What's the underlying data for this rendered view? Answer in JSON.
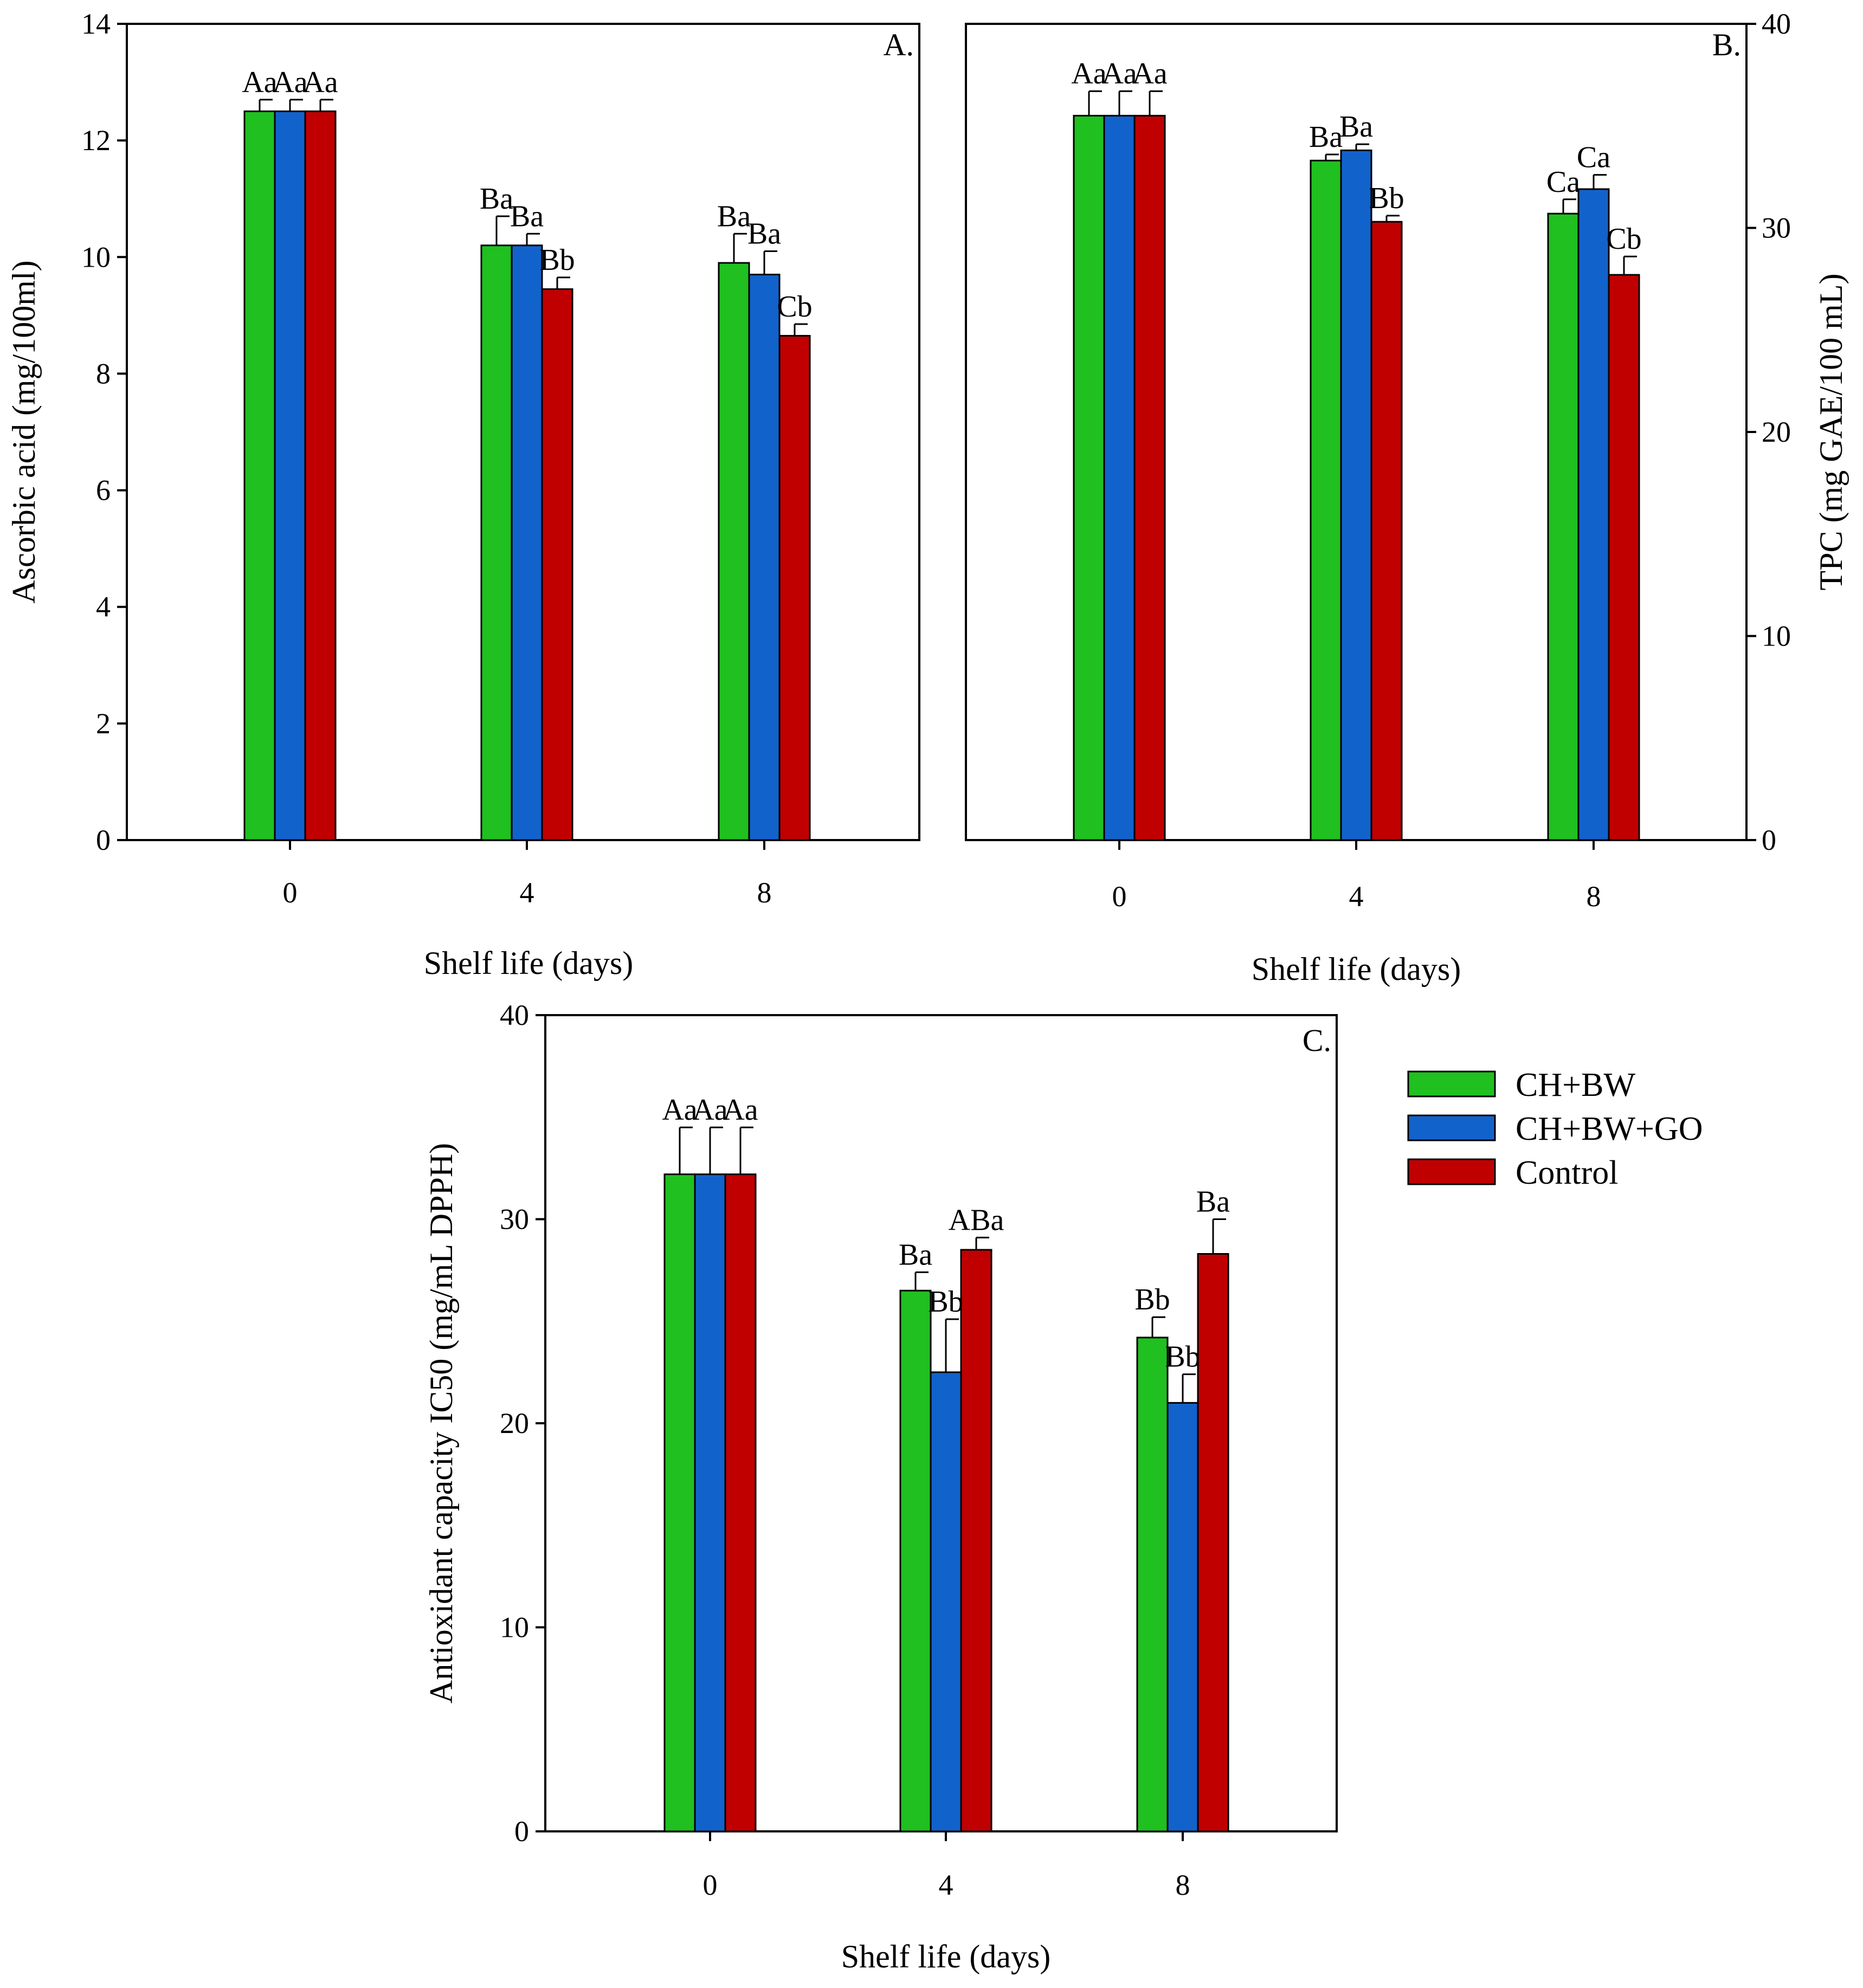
{
  "colors": {
    "CH+BW": "#1fc01f",
    "CH+BW+GO": "#1262cc",
    "Control": "#c00000"
  },
  "legend": {
    "items": [
      "CH+BW",
      "CH+BW+GO",
      "Control"
    ]
  },
  "chart_data": [
    {
      "type": "bar",
      "panel": "A.",
      "categories": [
        "0",
        "4",
        "8"
      ],
      "xlabel": "Shelf life (days)",
      "ylabel": "Ascorbic acid (mg/100ml)",
      "ylim": [
        0,
        14
      ],
      "yticks": [
        "0",
        "2",
        "4",
        "6",
        "8",
        "10",
        "12",
        "14"
      ],
      "y_axis_side": "left",
      "series": [
        {
          "name": "CH+BW",
          "values": [
            12.5,
            10.2,
            9.9
          ],
          "errors": [
            0.2,
            0.5,
            0.5
          ],
          "labels": [
            "Aa",
            "Ba",
            "Ba"
          ]
        },
        {
          "name": "CH+BW+GO",
          "values": [
            12.5,
            10.2,
            9.7
          ],
          "errors": [
            0.2,
            0.2,
            0.4
          ],
          "labels": [
            "Aa",
            "Ba",
            "Ba"
          ]
        },
        {
          "name": "Control",
          "values": [
            12.5,
            9.45,
            8.65
          ],
          "errors": [
            0.2,
            0.2,
            0.2
          ],
          "labels": [
            "Aa",
            "Bb",
            "Cb"
          ]
        }
      ]
    },
    {
      "type": "bar",
      "panel": "B.",
      "categories": [
        "0",
        "4",
        "8"
      ],
      "xlabel": "Shelf life (days)",
      "ylabel": "TPC (mg GAE/100 mL)",
      "ylim": [
        0,
        40
      ],
      "yticks": [
        "0",
        "10",
        "20",
        "30",
        "40"
      ],
      "y_axis_side": "right",
      "series": [
        {
          "name": "CH+BW",
          "values": [
            35.5,
            33.3,
            30.7
          ],
          "errors": [
            1.2,
            0.3,
            0.7
          ],
          "labels": [
            "Aa",
            "Ba",
            "Ca"
          ]
        },
        {
          "name": "CH+BW+GO",
          "values": [
            35.5,
            33.8,
            31.9
          ],
          "errors": [
            1.2,
            0.3,
            0.7
          ],
          "labels": [
            "Aa",
            "Ba",
            "Ca"
          ]
        },
        {
          "name": "Control",
          "values": [
            35.5,
            30.3,
            27.7
          ],
          "errors": [
            1.2,
            0.3,
            0.9
          ],
          "labels": [
            "Aa",
            "Bb",
            "Cb"
          ]
        }
      ]
    },
    {
      "type": "bar",
      "panel": "C.",
      "categories": [
        "0",
        "4",
        "8"
      ],
      "xlabel": "Shelf life (days)",
      "ylabel": "Antioxidant capacity IC50 (mg/mL DPPH)",
      "ylim": [
        0,
        40
      ],
      "yticks": [
        "0",
        "10",
        "20",
        "30",
        "40"
      ],
      "y_axis_side": "left",
      "series": [
        {
          "name": "CH+BW",
          "values": [
            32.2,
            26.5,
            24.2
          ],
          "errors": [
            2.3,
            0.9,
            1.0
          ],
          "labels": [
            "Aa",
            "Ba",
            "Bb"
          ]
        },
        {
          "name": "CH+BW+GO",
          "values": [
            32.2,
            22.5,
            21.0
          ],
          "errors": [
            2.3,
            2.6,
            1.4
          ],
          "labels": [
            "Aa",
            "Bb",
            "Bb"
          ]
        },
        {
          "name": "Control",
          "values": [
            32.2,
            28.5,
            28.3
          ],
          "errors": [
            2.3,
            0.6,
            1.7
          ],
          "labels": [
            "Aa",
            "ABa",
            "Ba"
          ]
        }
      ]
    }
  ]
}
